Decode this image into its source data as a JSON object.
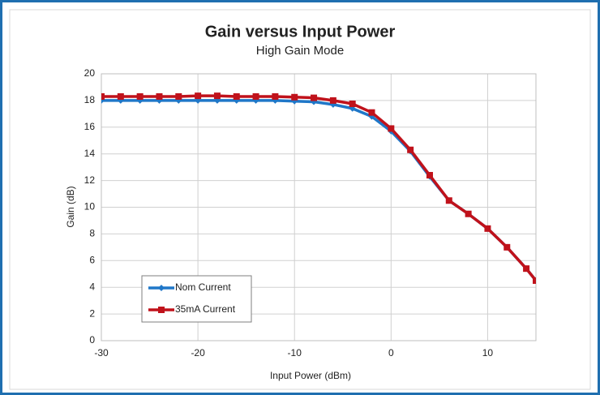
{
  "chart_data": {
    "type": "line",
    "title": "Gain versus Input Power",
    "subtitle": "High Gain Mode",
    "x_label": "Input Power (dBm)",
    "y_label": "Gain (dB)",
    "x": [
      -30,
      -28,
      -26,
      -24,
      -22,
      -20,
      -18,
      -16,
      -14,
      -12,
      -10,
      -8,
      -6,
      -4,
      -2,
      0,
      2,
      4,
      6,
      8,
      10,
      12,
      14,
      15
    ],
    "series": [
      {
        "name": "Nom Current",
        "color": "#1f77c8",
        "marker": "diamond",
        "values": [
          18.0,
          18.0,
          18.0,
          18.0,
          18.0,
          18.0,
          18.0,
          18.0,
          18.0,
          18.0,
          17.95,
          17.9,
          17.7,
          17.4,
          16.8,
          15.7,
          14.2,
          12.3,
          10.5,
          9.5,
          8.4,
          7.0,
          5.4,
          4.5
        ]
      },
      {
        "name": "35mA Current",
        "color": "#c0121b",
        "marker": "square",
        "values": [
          18.3,
          18.3,
          18.3,
          18.3,
          18.3,
          18.35,
          18.35,
          18.3,
          18.3,
          18.3,
          18.25,
          18.2,
          18.0,
          17.75,
          17.1,
          15.9,
          14.3,
          12.4,
          10.5,
          9.5,
          8.4,
          7.0,
          5.4,
          4.5
        ]
      }
    ],
    "xlim": [
      -30,
      15
    ],
    "xticks": [
      -30,
      -20,
      -10,
      0,
      10
    ],
    "ylim": [
      0,
      20
    ],
    "yticks": [
      0,
      2,
      4,
      6,
      8,
      10,
      12,
      14,
      16,
      18,
      20
    ],
    "grid": true,
    "legend": "lower left"
  }
}
